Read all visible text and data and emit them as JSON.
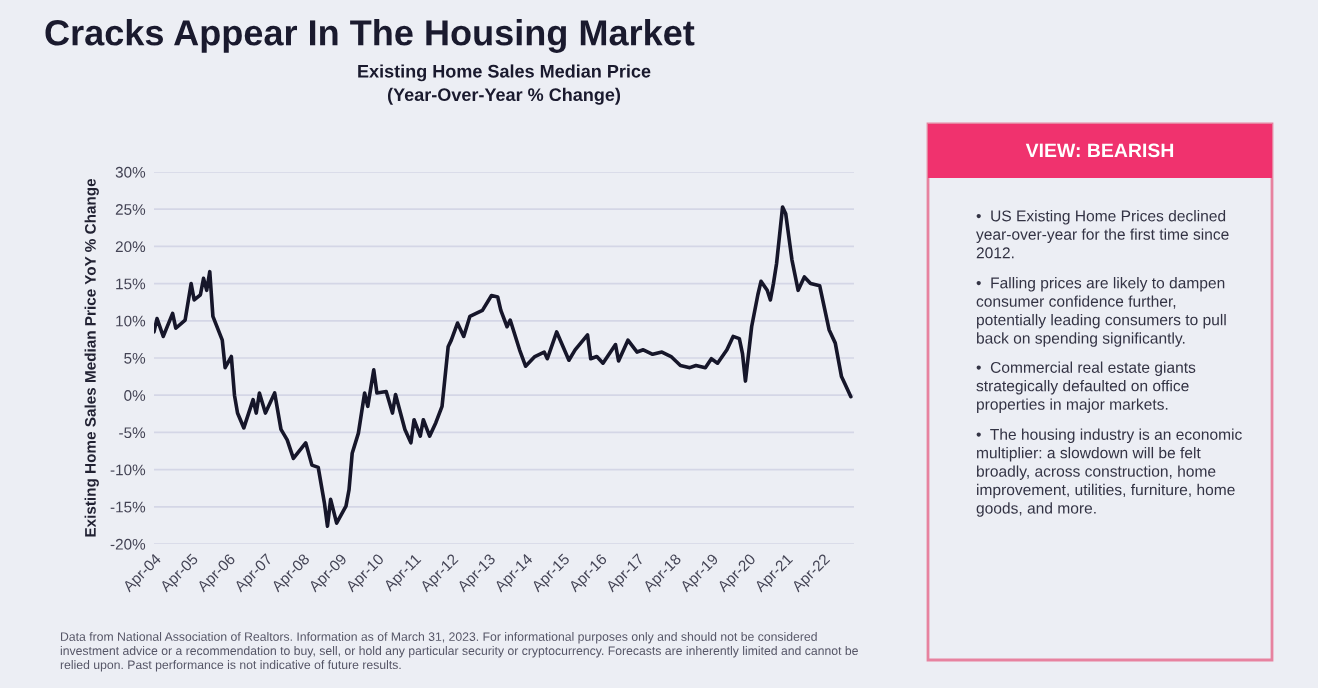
{
  "chart_data": {
    "type": "line",
    "title": "Cracks Appear In The Housing Market",
    "subtitle": "Existing Home Sales Median Price\n(Year-Over-Year % Change)",
    "ylabel": "Existing Home Sales Median Price YoY % Change",
    "x": [
      "2004-04",
      "2004-05",
      "2004-07",
      "2004-10",
      "2004-11",
      "2005-02",
      "2005-04",
      "2005-05",
      "2005-07",
      "2005-08",
      "2005-09",
      "2005-10",
      "2005-11",
      "2006-02",
      "2006-03",
      "2006-05",
      "2006-06",
      "2006-07",
      "2006-09",
      "2006-12",
      "2007-01",
      "2007-02",
      "2007-04",
      "2007-07",
      "2007-09",
      "2007-11",
      "2008-01",
      "2008-05",
      "2008-07",
      "2008-09",
      "2008-11",
      "2008-12",
      "2009-01",
      "2009-03",
      "2009-06",
      "2009-07",
      "2009-08",
      "2009-10",
      "2009-12",
      "2010-01",
      "2010-03",
      "2010-04",
      "2010-07",
      "2010-09",
      "2010-10",
      "2011-01",
      "2011-03",
      "2011-04",
      "2011-06",
      "2011-07",
      "2011-09",
      "2011-11",
      "2012-01",
      "2012-03",
      "2012-04",
      "2012-06",
      "2012-08",
      "2012-10",
      "2012-12",
      "2013-02",
      "2013-05",
      "2013-07",
      "2013-08",
      "2013-10",
      "2013-11",
      "2014-02",
      "2014-04",
      "2014-07",
      "2014-10",
      "2014-11",
      "2015-02",
      "2015-06",
      "2015-08",
      "2015-12",
      "2016-01",
      "2016-03",
      "2016-05",
      "2016-09",
      "2016-10",
      "2017-01",
      "2017-04",
      "2017-06",
      "2017-09",
      "2017-12",
      "2018-03",
      "2018-06",
      "2018-09",
      "2018-11",
      "2019-02",
      "2019-04",
      "2019-06",
      "2019-09",
      "2019-11",
      "2020-01",
      "2020-02",
      "2020-03",
      "2020-05",
      "2020-07",
      "2020-08",
      "2020-10",
      "2020-11",
      "2020-12",
      "2021-01",
      "2021-03",
      "2021-04",
      "2021-06",
      "2021-08",
      "2021-10",
      "2021-12",
      "2022-03",
      "2022-06",
      "2022-08",
      "2022-10",
      "2022-11",
      "2023-01"
    ],
    "series": [
      {
        "color": "#16162a",
        "values": [
          8.5,
          10.3,
          7.9,
          11,
          9.0,
          10.1,
          15,
          12.8,
          13.5,
          15.7,
          14.1,
          16.6,
          10.6,
          7.4,
          3.7,
          5.2,
          0,
          -2.4,
          -4.4,
          -0.6,
          -2.4,
          0.3,
          -2.4,
          0.3,
          -4.6,
          -6,
          -8.5,
          -6.4,
          -9.4,
          -9.7,
          -14.5,
          -17.6,
          -14,
          -17.2,
          -14.9,
          -12.7,
          -7.8,
          -5.1,
          0.3,
          -1.5,
          3.4,
          0.3,
          0.5,
          -2.4,
          0.1,
          -4.6,
          -6.4,
          -3.3,
          -5.5,
          -3.3,
          -5.5,
          -3.7,
          -1.5,
          6.5,
          7.4,
          9.7,
          7.9,
          10.6,
          11.0,
          11.4,
          13.4,
          13.2,
          11.4,
          9.2,
          10.1,
          6.1,
          3.9,
          5.2,
          5.8,
          4.9,
          8.5,
          4.7,
          6.1,
          8.1,
          4.9,
          5.2,
          4.3,
          6.8,
          4.6,
          7.4,
          5.8,
          6.1,
          5.5,
          5.8,
          5.2,
          4.0,
          3.7,
          4.0,
          3.7,
          4.9,
          4.3,
          6.1,
          7.9,
          7.6,
          5.6,
          1.9,
          9.2,
          13.5,
          15.3,
          14.1,
          12.8,
          15,
          17.7,
          25.3,
          24.4,
          18.2,
          14.1,
          15.9,
          15,
          14.7,
          8.8,
          7.0,
          2.5,
          1.6,
          -0.2
        ]
      }
    ],
    "xlim": [
      "2004-04",
      "2023-02"
    ],
    "xticks": [
      {
        "value": "2004-04",
        "label": "Apr-04"
      },
      {
        "value": "2005-04",
        "label": "Apr-05"
      },
      {
        "value": "2006-04",
        "label": "Apr-06"
      },
      {
        "value": "2007-04",
        "label": "Apr-07"
      },
      {
        "value": "2008-04",
        "label": "Apr-08"
      },
      {
        "value": "2009-04",
        "label": "Apr-09"
      },
      {
        "value": "2010-04",
        "label": "Apr-10"
      },
      {
        "value": "2011-04",
        "label": "Apr-11"
      },
      {
        "value": "2012-04",
        "label": "Apr-12"
      },
      {
        "value": "2013-04",
        "label": "Apr-13"
      },
      {
        "value": "2014-04",
        "label": "Apr-14"
      },
      {
        "value": "2015-04",
        "label": "Apr-15"
      },
      {
        "value": "2016-04",
        "label": "Apr-16"
      },
      {
        "value": "2017-04",
        "label": "Apr-17"
      },
      {
        "value": "2018-04",
        "label": "Apr-18"
      },
      {
        "value": "2019-04",
        "label": "Apr-19"
      },
      {
        "value": "2020-04",
        "label": "Apr-20"
      },
      {
        "value": "2021-04",
        "label": "Apr-21"
      },
      {
        "value": "2022-04",
        "label": "Apr-22"
      }
    ],
    "ylim": [
      -20,
      30
    ],
    "yticks": [
      {
        "value": -20,
        "label": "-20%"
      },
      {
        "value": -15,
        "label": "-15%"
      },
      {
        "value": -10,
        "label": "-10%"
      },
      {
        "value": -5,
        "label": "-5%"
      },
      {
        "value": 0,
        "label": "0%"
      },
      {
        "value": 5,
        "label": "5%"
      },
      {
        "value": 10,
        "label": "10%"
      },
      {
        "value": 15,
        "label": "15%"
      },
      {
        "value": 20,
        "label": "20%"
      },
      {
        "value": 25,
        "label": "25%"
      },
      {
        "value": 30,
        "label": "30%"
      }
    ],
    "grid": "y",
    "marker": "none",
    "line_style": "solid",
    "annotations": [
      "VIEW: BEARISH",
      "•  US Existing Home Prices declined year-over-year for the first time since 2012.",
      "•  Falling prices are likely to dampen consumer confidence further, potentially leading consumers to pull back on spending significantly.",
      "•  Commercial real estate giants strategically defaulted on office properties in major markets.",
      "•  The housing industry is an economic multiplier: a slowdown will be felt broadly, across construction, home improvement, utilities, furniture, home goods, and more.",
      "Data from National Association of Realtors. Information as of March 31, 2023. For informational purposes only and should not be considered investment advice or a recommendation to buy, sell, or hold any particular security or cryptocurrency. Forecasts are inherently limited and cannot be relied upon. Past performance is not indicative of future results."
    ]
  }
}
